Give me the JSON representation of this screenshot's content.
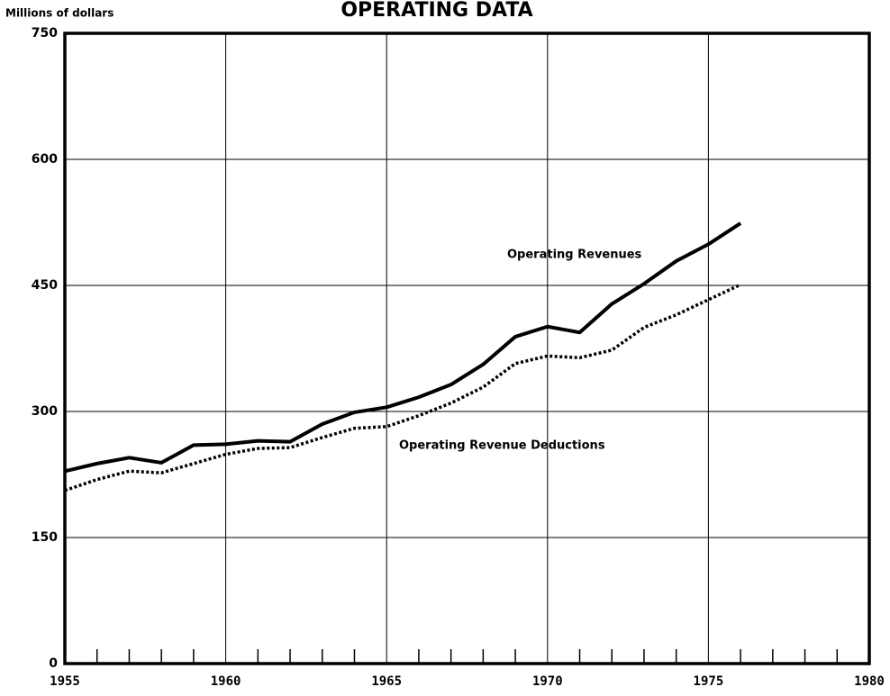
{
  "chart_data": {
    "type": "line",
    "title": "OPERATING DATA",
    "y_label": "Millions of dollars",
    "x": [
      1955,
      1956,
      1957,
      1958,
      1959,
      1960,
      1961,
      1962,
      1963,
      1964,
      1965,
      1966,
      1967,
      1968,
      1969,
      1970,
      1971,
      1972,
      1973,
      1974,
      1975,
      1976
    ],
    "series": [
      {
        "name": "Operating Revenues",
        "color": "#000000",
        "dash": false,
        "values": [
          229,
          238,
          245,
          239,
          260,
          261,
          265,
          264,
          285,
          299,
          305,
          317,
          332,
          356,
          389,
          401,
          394,
          428,
          452,
          479,
          499,
          524
        ]
      },
      {
        "name": "Operating Revenue Deductions",
        "color": "#000000",
        "dash": true,
        "values": [
          206,
          219,
          229,
          227,
          238,
          249,
          256,
          257,
          269,
          280,
          282,
          295,
          310,
          329,
          357,
          366,
          364,
          373,
          400,
          415,
          433,
          451
        ]
      }
    ],
    "xlim": [
      1955,
      1980
    ],
    "xticks": [
      1955,
      1960,
      1965,
      1970,
      1975,
      1980
    ],
    "xminorticks": [
      1956,
      1957,
      1958,
      1959,
      1961,
      1962,
      1963,
      1964,
      1966,
      1967,
      1968,
      1969,
      1971,
      1972,
      1973,
      1974,
      1976,
      1977,
      1978,
      1979
    ],
    "ylim": [
      0,
      750
    ],
    "yticks": [
      0,
      150,
      300,
      450,
      600,
      750
    ],
    "grid": true
  }
}
